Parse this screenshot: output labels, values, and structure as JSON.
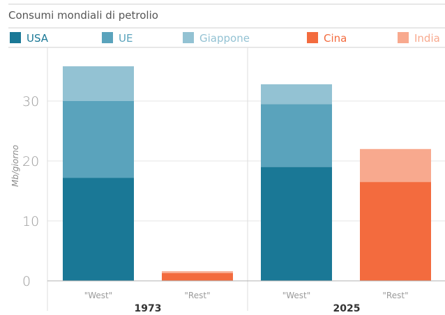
{
  "chart_data": {
    "type": "bar",
    "stacked": true,
    "title": "Consumi mondiali di petrolio",
    "ylabel": "Mb/giorno",
    "ylim": [
      0,
      37
    ],
    "yticks": [
      0,
      10,
      20,
      30
    ],
    "grid": true,
    "legend_position": "top",
    "groups": [
      {
        "label": "1973",
        "bars": [
          {
            "category": "\"West\"",
            "segments": [
              {
                "series": "USA",
                "value": 17.2
              },
              {
                "series": "UE",
                "value": 12.8
              },
              {
                "series": "Giappone",
                "value": 5.8
              }
            ]
          },
          {
            "category": "\"Rest\"",
            "segments": [
              {
                "series": "Cina",
                "value": 1.3
              },
              {
                "series": "India",
                "value": 0.3
              }
            ]
          }
        ]
      },
      {
        "label": "2025",
        "bars": [
          {
            "category": "\"West\"",
            "segments": [
              {
                "series": "USA",
                "value": 19.0
              },
              {
                "series": "UE",
                "value": 10.5
              },
              {
                "series": "Giappone",
                "value": 3.3
              }
            ]
          },
          {
            "category": "\"Rest\"",
            "segments": [
              {
                "series": "Cina",
                "value": 16.5
              },
              {
                "series": "India",
                "value": 5.5
              }
            ]
          }
        ]
      }
    ],
    "series": [
      {
        "name": "USA",
        "color": "#1a7896"
      },
      {
        "name": "UE",
        "color": "#5aa3bc"
      },
      {
        "name": "Giappone",
        "color": "#93c2d3"
      },
      {
        "name": "Cina",
        "color": "#f36b3e"
      },
      {
        "name": "India",
        "color": "#f8a98e"
      }
    ]
  }
}
